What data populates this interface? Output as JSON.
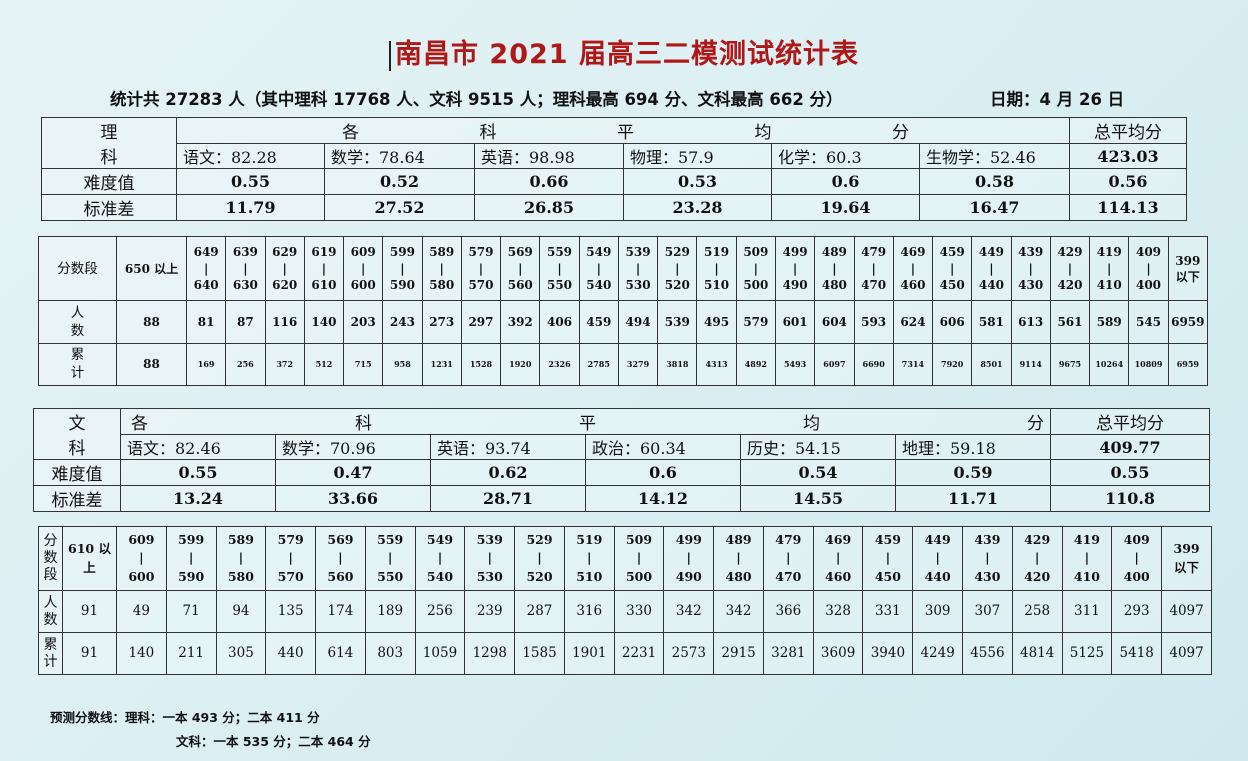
{
  "title": "南昌市 2021 届高三二模测试统计表",
  "summary": "统计共 27283 人（其中理科 17768 人、文科 9515 人；理科最高 694 分、文科最高 662 分）",
  "date": "日期：4 月 26 日",
  "science_avg": {
    "corner_line1": "理",
    "corner_line2": "科",
    "header_chars": [
      "各",
      "科",
      "平",
      "均",
      "分"
    ],
    "total_label": "总平均分",
    "subjects": [
      "语文：82.28",
      "数学：78.64",
      "英语：98.98",
      "物理：57.9",
      "化学：60.3",
      "生物学：52.46"
    ],
    "total": "423.03",
    "difficulty_label": "难度值",
    "difficulty": [
      "0.55",
      "0.52",
      "0.66",
      "0.53",
      "0.6",
      "0.58",
      "0.56"
    ],
    "std_label": "标准差",
    "std": [
      "11.79",
      "27.52",
      "26.85",
      "23.28",
      "19.64",
      "16.47",
      "114.13"
    ]
  },
  "science_dist": {
    "label_segment": "分数段",
    "label_count": "人数",
    "label_cum": "累计",
    "first_segment": "650 以上",
    "last_segment": "399 以下",
    "ranges": [
      [
        "649",
        "640"
      ],
      [
        "639",
        "630"
      ],
      [
        "629",
        "620"
      ],
      [
        "619",
        "610"
      ],
      [
        "609",
        "600"
      ],
      [
        "599",
        "590"
      ],
      [
        "589",
        "580"
      ],
      [
        "579",
        "570"
      ],
      [
        "569",
        "560"
      ],
      [
        "559",
        "550"
      ],
      [
        "549",
        "540"
      ],
      [
        "539",
        "530"
      ],
      [
        "529",
        "520"
      ],
      [
        "519",
        "510"
      ],
      [
        "509",
        "500"
      ],
      [
        "499",
        "490"
      ],
      [
        "489",
        "480"
      ],
      [
        "479",
        "470"
      ],
      [
        "469",
        "460"
      ],
      [
        "459",
        "450"
      ],
      [
        "449",
        "440"
      ],
      [
        "439",
        "430"
      ],
      [
        "429",
        "420"
      ],
      [
        "419",
        "410"
      ],
      [
        "409",
        "400"
      ]
    ],
    "counts": [
      "88",
      "81",
      "87",
      "116",
      "140",
      "203",
      "243",
      "273",
      "297",
      "392",
      "406",
      "459",
      "494",
      "539",
      "495",
      "579",
      "601",
      "604",
      "593",
      "624",
      "606",
      "581",
      "613",
      "561",
      "589",
      "545",
      "6959"
    ],
    "cumulative": [
      "88",
      "169",
      "256",
      "372",
      "512",
      "715",
      "958",
      "1231",
      "1528",
      "1920",
      "2326",
      "2785",
      "3279",
      "3818",
      "4313",
      "4892",
      "5493",
      "6097",
      "6690",
      "7314",
      "7920",
      "8501",
      "9114",
      "9675",
      "10264",
      "10809",
      "6959"
    ]
  },
  "arts_avg": {
    "corner_line1": "文",
    "corner_line2": "科",
    "header_chars": [
      "各",
      "科",
      "平",
      "均",
      "分"
    ],
    "total_label": "总平均分",
    "subjects": [
      "语文：82.46",
      "数学：70.96",
      "英语：93.74",
      "政治：60.34",
      "历史：54.15",
      "地理：59.18"
    ],
    "total": "409.77",
    "difficulty_label": "难度值",
    "difficulty": [
      "0.55",
      "0.47",
      "0.62",
      "0.6",
      "0.54",
      "0.59",
      "0.55"
    ],
    "std_label": "标准差",
    "std": [
      "13.24",
      "33.66",
      "28.71",
      "14.12",
      "14.55",
      "11.71",
      "110.8"
    ]
  },
  "arts_dist": {
    "label_segment": "分数段",
    "label_count": "人数",
    "label_cum": "累计",
    "first_segment": "610 以上",
    "last_segment": "399 以下",
    "ranges": [
      [
        "609",
        "600"
      ],
      [
        "599",
        "590"
      ],
      [
        "589",
        "580"
      ],
      [
        "579",
        "570"
      ],
      [
        "569",
        "560"
      ],
      [
        "559",
        "550"
      ],
      [
        "549",
        "540"
      ],
      [
        "539",
        "530"
      ],
      [
        "529",
        "520"
      ],
      [
        "519",
        "510"
      ],
      [
        "509",
        "500"
      ],
      [
        "499",
        "490"
      ],
      [
        "489",
        "480"
      ],
      [
        "479",
        "470"
      ],
      [
        "469",
        "460"
      ],
      [
        "459",
        "450"
      ],
      [
        "449",
        "440"
      ],
      [
        "439",
        "430"
      ],
      [
        "429",
        "420"
      ],
      [
        "419",
        "410"
      ],
      [
        "409",
        "400"
      ]
    ],
    "counts": [
      "91",
      "49",
      "71",
      "94",
      "135",
      "174",
      "189",
      "256",
      "239",
      "287",
      "316",
      "330",
      "342",
      "342",
      "366",
      "328",
      "331",
      "309",
      "307",
      "258",
      "311",
      "293",
      "4097"
    ],
    "cumulative": [
      "91",
      "140",
      "211",
      "305",
      "440",
      "614",
      "803",
      "1059",
      "1298",
      "1585",
      "1901",
      "2231",
      "2573",
      "2915",
      "3281",
      "3609",
      "3940",
      "4249",
      "4556",
      "4814",
      "5125",
      "5418",
      "4097"
    ]
  },
  "forecast": {
    "science": "预测分数线：理科：一本 493 分；二本 411 分",
    "arts": "文科：一本 535 分；二本 464 分"
  }
}
